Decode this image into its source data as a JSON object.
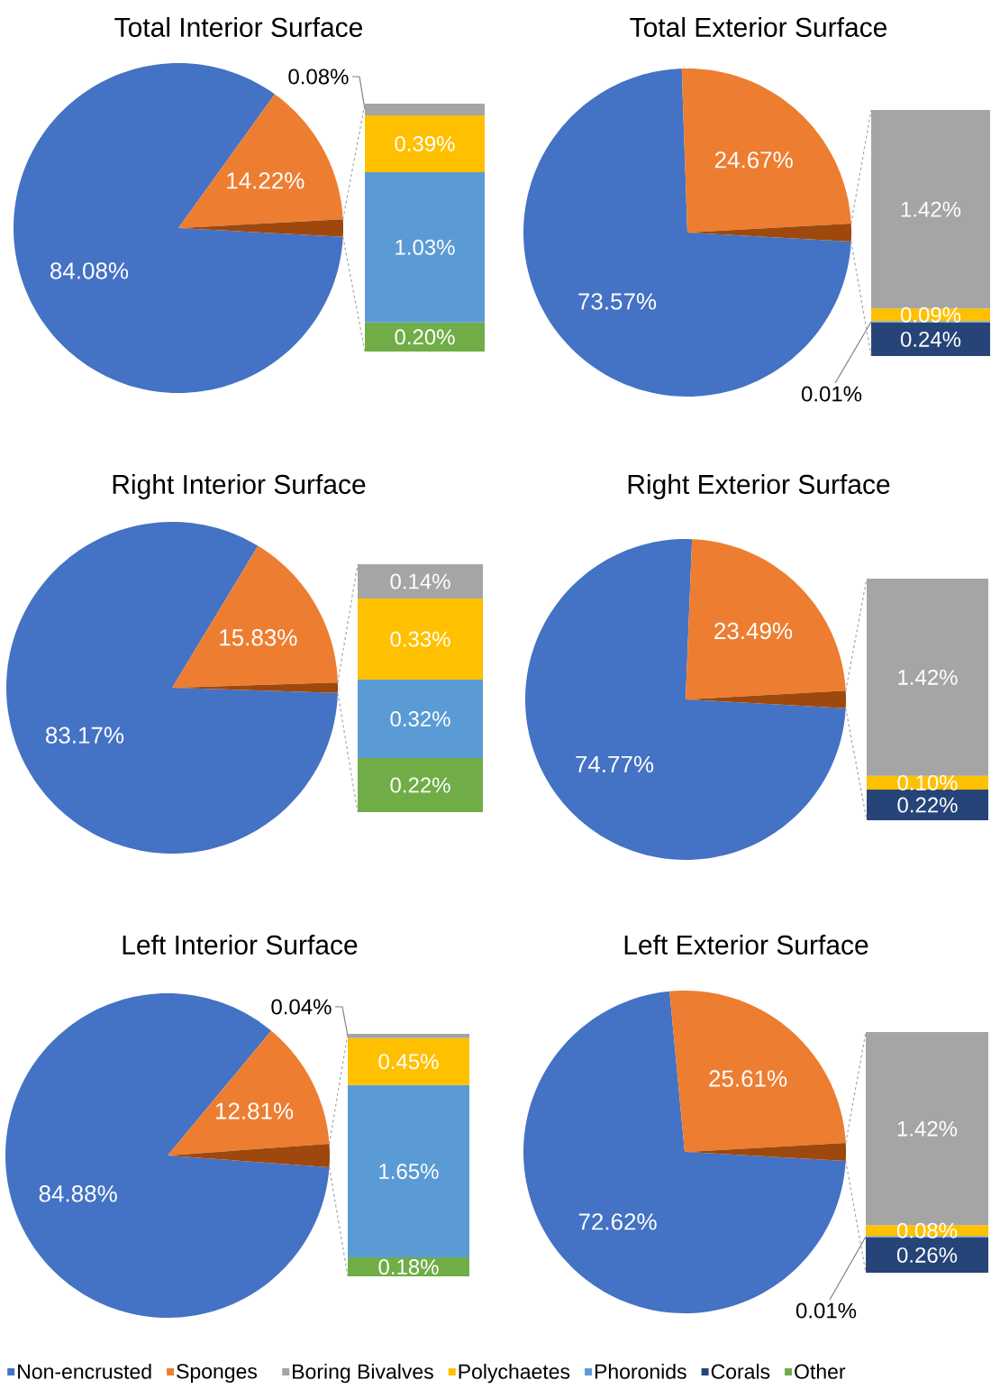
{
  "chart_data": [
    {
      "type": "pie",
      "title": "Total Interior Surface",
      "categories": [
        "Non-encrusted",
        "Sponges",
        null
      ],
      "values": [
        84.08,
        14.22,
        1.7
      ],
      "value_labels": [
        "84.08%",
        "14.22%",
        null
      ],
      "colors": [
        "#4472c4",
        "#ed7d31",
        "#9e480e"
      ],
      "legend": "bottom"
    },
    {
      "type": "bar",
      "stacked": true,
      "categories": [
        null
      ],
      "legend": "bottom",
      "series": [
        {
          "name": "Other",
          "color": "#70ad47",
          "values": [
            0.2
          ],
          "value_labels": [
            "0.20%"
          ]
        },
        {
          "name": "Corals",
          "color": "#264478",
          "values": [
            0
          ],
          "value_labels": [
            null
          ]
        },
        {
          "name": "Phoronids",
          "color": "#5b9bd5",
          "values": [
            1.03
          ],
          "value_labels": [
            "1.03%"
          ]
        },
        {
          "name": "Polychaetes",
          "color": "#ffc000",
          "values": [
            0.39
          ],
          "value_labels": [
            "0.39%"
          ]
        },
        {
          "name": "Boring Bivalves",
          "color": "#a5a5a5",
          "values": [
            0.08
          ],
          "value_labels": [
            "0.08%"
          ]
        }
      ]
    },
    {
      "type": "pie",
      "title": "Total Exterior Surface",
      "categories": [
        null,
        null,
        null
      ],
      "values": [
        73.57,
        24.67,
        1.76
      ],
      "value_labels": [
        "73.57%",
        "24.67%",
        null
      ],
      "colors": [
        "#4472c4",
        "#ed7d31",
        "#9e480e"
      ]
    },
    {
      "type": "bar",
      "stacked": true,
      "categories": [
        null
      ],
      "series": [
        {
          "color": "#264478",
          "values": [
            0.24
          ],
          "value_labels": [
            "0.24%"
          ]
        },
        {
          "color": "#5b9bd5",
          "values": [
            0.01
          ],
          "value_labels": [
            "0.01%"
          ]
        },
        {
          "color": "#ffc000",
          "values": [
            0.09
          ],
          "value_labels": [
            "0.09%"
          ]
        },
        {
          "color": "#a5a5a5",
          "values": [
            1.42
          ],
          "value_labels": [
            "1.42%"
          ]
        }
      ]
    },
    {
      "type": "pie",
      "title": "Right Interior Surface",
      "categories": [
        null,
        null,
        null
      ],
      "values": [
        83.17,
        15.83,
        1.0
      ],
      "value_labels": [
        "83.17%",
        "15.83%",
        null
      ],
      "colors": [
        "#4472c4",
        "#ed7d31",
        "#9e480e"
      ]
    },
    {
      "type": "bar",
      "stacked": true,
      "categories": [
        null
      ],
      "series": [
        {
          "color": "#70ad47",
          "values": [
            0.22
          ],
          "value_labels": [
            "0.22%"
          ]
        },
        {
          "color": "#5b9bd5",
          "values": [
            0.32
          ],
          "value_labels": [
            "0.32%"
          ]
        },
        {
          "color": "#ffc000",
          "values": [
            0.33
          ],
          "value_labels": [
            "0.33%"
          ]
        },
        {
          "color": "#a5a5a5",
          "values": [
            0.14
          ],
          "value_labels": [
            "0.14%"
          ]
        }
      ]
    },
    {
      "type": "pie",
      "title": "Right Exterior Surface",
      "categories": [
        null,
        null,
        null
      ],
      "values": [
        74.77,
        23.49,
        1.74
      ],
      "value_labels": [
        "74.77%",
        "23.49%",
        null
      ],
      "colors": [
        "#4472c4",
        "#ed7d31",
        "#9e480e"
      ]
    },
    {
      "type": "bar",
      "stacked": true,
      "categories": [
        null
      ],
      "series": [
        {
          "color": "#264478",
          "values": [
            0.22
          ],
          "value_labels": [
            "0.22%"
          ]
        },
        {
          "color": "#ffc000",
          "values": [
            0.1
          ],
          "value_labels": [
            "0.10%"
          ]
        },
        {
          "color": "#a5a5a5",
          "values": [
            1.42
          ],
          "value_labels": [
            "1.42%"
          ]
        }
      ]
    },
    {
      "type": "pie",
      "title": "Left Interior Surface",
      "categories": [
        null,
        null,
        null
      ],
      "values": [
        84.88,
        12.81,
        2.31
      ],
      "value_labels": [
        "84.88%",
        "12.81%",
        null
      ],
      "colors": [
        "#4472c4",
        "#ed7d31",
        "#9e480e"
      ]
    },
    {
      "type": "bar",
      "stacked": true,
      "categories": [
        null
      ],
      "series": [
        {
          "color": "#70ad47",
          "values": [
            0.18
          ],
          "value_labels": [
            "0.18%"
          ]
        },
        {
          "color": "#5b9bd5",
          "values": [
            1.65
          ],
          "value_labels": [
            "1.65%"
          ]
        },
        {
          "color": "#ffc000",
          "values": [
            0.45
          ],
          "value_labels": [
            "0.45%"
          ]
        },
        {
          "color": "#a5a5a5",
          "values": [
            0.04
          ],
          "value_labels": [
            "0.04%"
          ]
        }
      ]
    },
    {
      "type": "pie",
      "title": "Left Exterior Surface",
      "categories": [
        null,
        null,
        null
      ],
      "values": [
        72.62,
        25.61,
        1.77
      ],
      "value_labels": [
        "72.62%",
        "25.61%",
        null
      ],
      "colors": [
        "#4472c4",
        "#ed7d31",
        "#9e480e"
      ]
    },
    {
      "type": "bar",
      "stacked": true,
      "categories": [
        null
      ],
      "series": [
        {
          "color": "#264478",
          "values": [
            0.26
          ],
          "value_labels": [
            "0.26%"
          ]
        },
        {
          "color": "#5b9bd5",
          "values": [
            0.01
          ],
          "value_labels": [
            "0.01%"
          ]
        },
        {
          "color": "#ffc000",
          "values": [
            0.08
          ],
          "value_labels": [
            "0.08%"
          ]
        },
        {
          "color": "#a5a5a5",
          "values": [
            1.42
          ],
          "value_labels": [
            "1.42%"
          ]
        }
      ]
    }
  ]
}
